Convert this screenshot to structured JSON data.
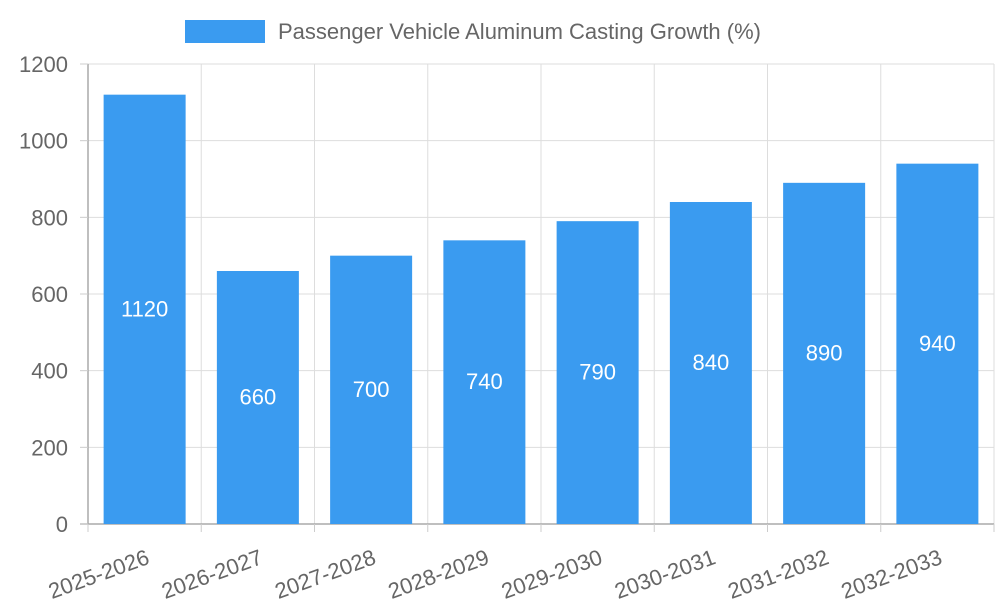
{
  "chart_data": {
    "type": "bar",
    "title": "",
    "xlabel": "",
    "ylabel": "",
    "categories": [
      "2025-2026",
      "2026-2027",
      "2027-2028",
      "2028-2029",
      "2029-2030",
      "2030-2031",
      "2031-2032",
      "2032-2033"
    ],
    "series": [
      {
        "name": "Passenger Vehicle Aluminum Casting Growth (%)",
        "values": [
          1120,
          660,
          700,
          740,
          790,
          840,
          890,
          940
        ],
        "color": "#3a9bf0"
      }
    ],
    "ylim": [
      0,
      1200
    ],
    "yticks": [
      0,
      200,
      400,
      600,
      800,
      1000,
      1200
    ],
    "grid": true,
    "legend_position": "top-center",
    "data_labels": true
  }
}
